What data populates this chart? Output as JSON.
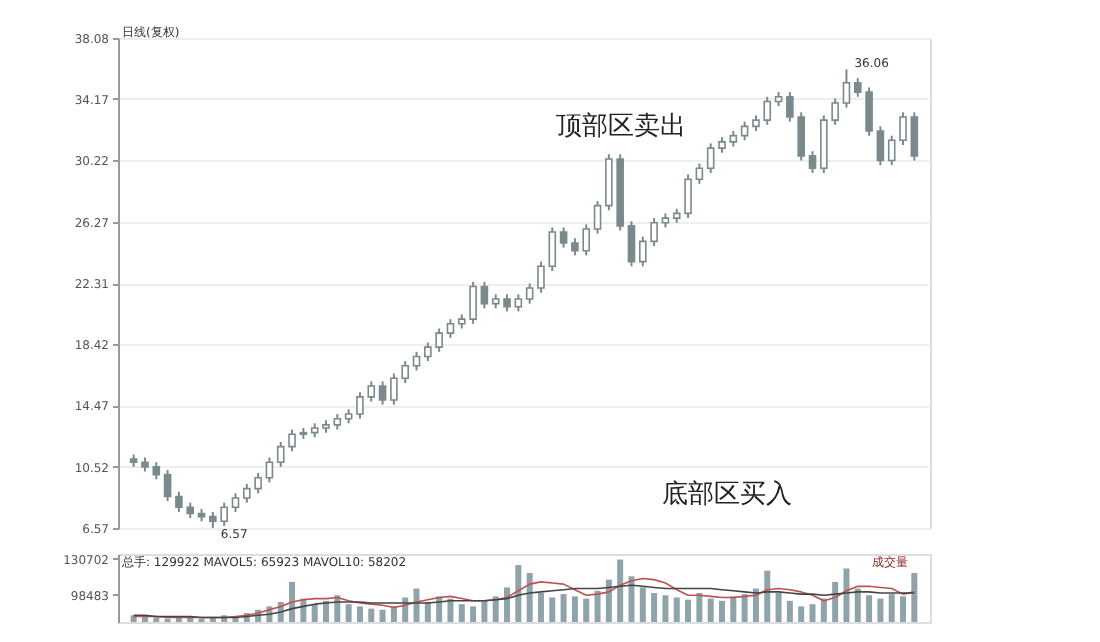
{
  "chart_data": [
    {
      "type": "candlestick",
      "title": "日线(复权)",
      "categories": [
        null,
        null,
        null,
        null,
        null,
        null,
        null,
        null,
        null,
        null,
        null,
        null,
        null,
        null,
        null,
        null,
        null,
        null,
        null,
        null,
        null,
        null,
        null,
        null,
        null,
        null,
        null,
        null,
        null,
        null,
        null,
        null,
        null,
        null,
        null,
        null,
        null,
        null,
        null,
        null,
        null,
        null,
        null,
        null,
        null,
        null,
        null,
        null,
        null,
        null,
        null,
        null,
        null,
        null,
        null,
        null,
        null,
        null,
        null,
        null,
        null,
        null,
        null,
        null,
        null,
        null,
        null,
        null,
        null,
        null
      ],
      "ohlc": [
        [
          11.0,
          11.3,
          10.5,
          10.8
        ],
        [
          10.8,
          11.1,
          10.2,
          10.5
        ],
        [
          10.5,
          10.8,
          9.7,
          10.0
        ],
        [
          10.0,
          10.3,
          8.3,
          8.6
        ],
        [
          8.6,
          8.9,
          7.6,
          7.9
        ],
        [
          7.9,
          8.2,
          7.2,
          7.5
        ],
        [
          7.5,
          7.8,
          7.0,
          7.3
        ],
        [
          7.3,
          7.6,
          6.57,
          7.0
        ],
        [
          7.0,
          8.2,
          6.7,
          7.9
        ],
        [
          7.9,
          8.8,
          7.6,
          8.5
        ],
        [
          8.5,
          9.4,
          8.2,
          9.1
        ],
        [
          9.1,
          10.1,
          8.8,
          9.8
        ],
        [
          9.8,
          11.1,
          9.5,
          10.8
        ],
        [
          10.8,
          12.1,
          10.5,
          11.8
        ],
        [
          11.8,
          12.9,
          11.5,
          12.6
        ],
        [
          12.6,
          13.0,
          12.3,
          12.7
        ],
        [
          12.7,
          13.3,
          12.4,
          13.0
        ],
        [
          13.0,
          13.5,
          12.7,
          13.2
        ],
        [
          13.2,
          13.9,
          12.9,
          13.6
        ],
        [
          13.6,
          14.2,
          13.3,
          13.9
        ],
        [
          13.9,
          15.3,
          13.6,
          15.0
        ],
        [
          15.0,
          16.0,
          14.7,
          15.7
        ],
        [
          15.7,
          16.0,
          14.5,
          14.8
        ],
        [
          14.8,
          16.5,
          14.5,
          16.2
        ],
        [
          16.2,
          17.3,
          15.9,
          17.0
        ],
        [
          17.0,
          17.9,
          16.7,
          17.6
        ],
        [
          17.6,
          18.5,
          17.3,
          18.2
        ],
        [
          18.2,
          19.4,
          17.9,
          19.1
        ],
        [
          19.1,
          20.0,
          18.8,
          19.7
        ],
        [
          19.7,
          20.3,
          19.4,
          20.0
        ],
        [
          20.0,
          22.4,
          19.7,
          22.1
        ],
        [
          22.1,
          22.4,
          20.7,
          21.0
        ],
        [
          21.0,
          21.6,
          20.7,
          21.3
        ],
        [
          21.3,
          21.6,
          20.5,
          20.8
        ],
        [
          20.8,
          21.6,
          20.5,
          21.3
        ],
        [
          21.3,
          22.3,
          21.0,
          22.0
        ],
        [
          22.0,
          23.7,
          21.7,
          23.4
        ],
        [
          23.4,
          25.9,
          23.1,
          25.6
        ],
        [
          25.6,
          25.9,
          24.6,
          24.9
        ],
        [
          24.9,
          25.2,
          24.1,
          24.4
        ],
        [
          24.4,
          26.1,
          24.1,
          25.8
        ],
        [
          25.8,
          27.6,
          25.5,
          27.3
        ],
        [
          27.3,
          30.6,
          27.0,
          30.3
        ],
        [
          30.3,
          30.6,
          25.7,
          26.0
        ],
        [
          26.0,
          26.3,
          23.4,
          23.7
        ],
        [
          23.7,
          25.3,
          23.4,
          25.0
        ],
        [
          25.0,
          26.5,
          24.7,
          26.2
        ],
        [
          26.2,
          26.8,
          25.9,
          26.5
        ],
        [
          26.5,
          27.1,
          26.2,
          26.8
        ],
        [
          26.8,
          29.3,
          26.5,
          29.0
        ],
        [
          29.0,
          30.0,
          28.7,
          29.7
        ],
        [
          29.7,
          31.3,
          29.4,
          31.0
        ],
        [
          31.0,
          31.7,
          30.7,
          31.4
        ],
        [
          31.4,
          32.1,
          31.1,
          31.8
        ],
        [
          31.8,
          32.7,
          31.5,
          32.4
        ],
        [
          32.4,
          33.1,
          32.1,
          32.8
        ],
        [
          32.8,
          34.3,
          32.5,
          34.0
        ],
        [
          34.0,
          34.6,
          33.7,
          34.3
        ],
        [
          34.3,
          34.6,
          32.7,
          33.0
        ],
        [
          33.0,
          33.3,
          30.2,
          30.5
        ],
        [
          30.5,
          30.8,
          29.4,
          29.7
        ],
        [
          29.7,
          33.1,
          29.4,
          32.8
        ],
        [
          32.8,
          34.2,
          32.5,
          33.9
        ],
        [
          33.9,
          36.06,
          33.6,
          35.2
        ],
        [
          35.2,
          35.5,
          34.3,
          34.6
        ],
        [
          34.6,
          34.9,
          31.8,
          32.1
        ],
        [
          32.1,
          32.4,
          29.9,
          30.2
        ],
        [
          30.2,
          31.8,
          29.9,
          31.5
        ],
        [
          31.5,
          33.3,
          31.2,
          33.0
        ],
        [
          33.0,
          33.3,
          30.2,
          30.5
        ]
      ],
      "color": "#7a8a8c",
      "ylim": [
        6.57,
        38.08
      ],
      "yticks": [
        6.57,
        10.52,
        14.47,
        18.42,
        22.31,
        26.27,
        30.22,
        34.17,
        38.08
      ],
      "grid": "y",
      "tick_labels": "y",
      "annotations": [
        "36.06",
        "6.57",
        "顶部区卖出",
        "底部区买入"
      ]
    },
    {
      "type": "line",
      "categories": [
        null,
        null,
        null,
        null,
        null,
        null,
        null,
        null,
        null,
        null,
        null,
        null,
        null,
        null,
        null,
        null,
        null,
        null,
        null,
        null,
        null,
        null,
        null,
        null,
        null,
        null,
        null,
        null,
        null,
        null,
        null,
        null,
        null,
        null,
        null,
        null,
        null,
        null,
        null,
        null,
        null,
        null,
        null,
        null,
        null,
        null,
        null,
        null,
        null,
        null,
        null,
        null,
        null,
        null,
        null,
        null,
        null,
        null,
        null,
        null,
        null,
        null,
        null,
        null,
        null,
        null,
        null,
        null,
        null,
        null
      ],
      "series": [
        {
          "type": "bar",
          "color": "#8fa3ab",
          "values": [
            80000,
            79000,
            78000,
            77000,
            78000,
            79000,
            77000,
            78000,
            80000,
            79000,
            82000,
            85000,
            88000,
            92000,
            110000,
            95000,
            90000,
            93000,
            98000,
            90000,
            88000,
            86000,
            85000,
            88000,
            96000,
            104000,
            92000,
            97000,
            95000,
            90000,
            88000,
            93000,
            97000,
            105000,
            125000,
            118000,
            100000,
            96000,
            99000,
            97000,
            95000,
            102000,
            112000,
            130000,
            115000,
            105000,
            100000,
            98000,
            96000,
            94000,
            100000,
            95000,
            93000,
            97000,
            99000,
            104000,
            120000,
            100000,
            93000,
            88000,
            90000,
            95000,
            110000,
            122000,
            104000,
            98000,
            95000,
            99000,
            97000,
            118000
          ]
        },
        {
          "type": "line",
          "color": "#c0504d",
          "values": [
            79000,
            79000,
            79000,
            78000,
            78000,
            78000,
            78000,
            78000,
            78000,
            79000,
            80000,
            82000,
            85000,
            88000,
            92000,
            94000,
            95000,
            95000,
            96000,
            93000,
            91000,
            90000,
            89000,
            87000,
            89000,
            92000,
            94000,
            96000,
            97000,
            95000,
            93000,
            93000,
            94000,
            96000,
            102000,
            108000,
            110000,
            109000,
            108000,
            103000,
            98000,
            99000,
            101000,
            107000,
            111000,
            113000,
            112000,
            109000,
            103000,
            98000,
            98000,
            97000,
            96000,
            96000,
            97000,
            98000,
            103000,
            104000,
            103000,
            101000,
            98000,
            93000,
            96000,
            102000,
            106000,
            106000,
            105000,
            104000,
            99000,
            101000
          ]
        },
        {
          "type": "line",
          "color": "#444444",
          "values": [
            80000,
            80000,
            79000,
            79000,
            79000,
            79000,
            78000,
            78000,
            78000,
            78000,
            79000,
            80000,
            81000,
            83000,
            86000,
            88000,
            90000,
            91000,
            92000,
            92000,
            92000,
            91000,
            91000,
            91000,
            91000,
            91000,
            91000,
            92000,
            93000,
            93000,
            93000,
            93000,
            94000,
            95000,
            98000,
            100000,
            101000,
            102000,
            103000,
            104000,
            104000,
            104000,
            105000,
            106000,
            107000,
            106000,
            105000,
            104000,
            104000,
            104000,
            104000,
            104000,
            103000,
            102000,
            101000,
            100000,
            101000,
            101000,
            100000,
            99000,
            99000,
            98000,
            99000,
            100000,
            101000,
            101000,
            100000,
            100000,
            100000,
            100000
          ]
        }
      ],
      "ylim": [
        74000,
        135000
      ],
      "yticks": [
        98483,
        130702
      ],
      "grid": false,
      "tick_labels": "y",
      "annotations": [
        "总手: 129922  MAVOL5: 65923  MAVOL10: 58202",
        "成交量"
      ]
    }
  ]
}
